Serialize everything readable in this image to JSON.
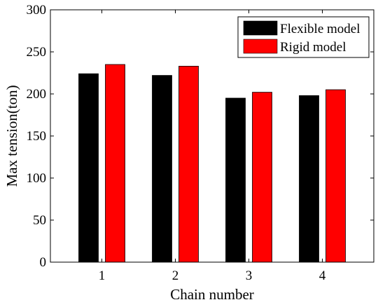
{
  "chart_data": {
    "type": "bar",
    "title": "",
    "xlabel": "Chain number",
    "ylabel": "Max tension(ton)",
    "categories": [
      "1",
      "2",
      "3",
      "4"
    ],
    "yticks": [
      0,
      50,
      100,
      150,
      200,
      250,
      300
    ],
    "ylim": [
      0,
      300
    ],
    "grid": false,
    "legend_position": "top-right",
    "series": [
      {
        "name": "Flexible model",
        "color": "#000000",
        "values": [
          224,
          222,
          195,
          198
        ]
      },
      {
        "name": "Rigid model",
        "color": "#ff0000",
        "values": [
          235,
          233,
          202,
          205
        ]
      }
    ]
  }
}
